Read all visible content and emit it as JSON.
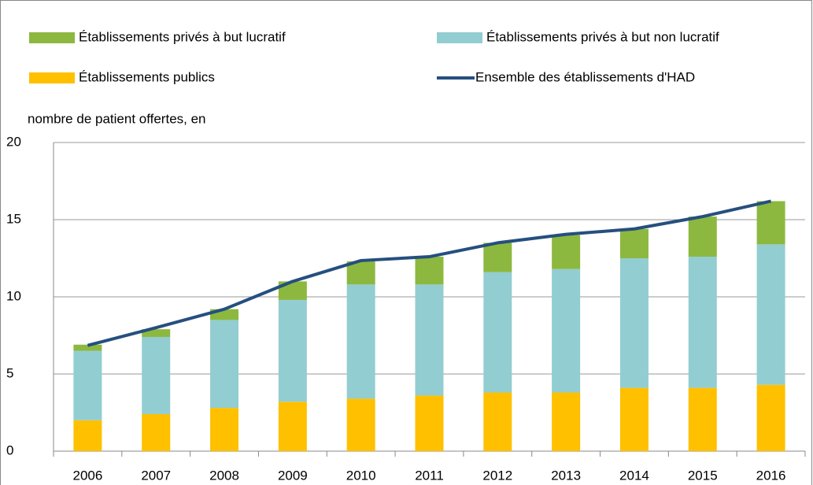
{
  "chart_data": {
    "type": "stacked_bar_line",
    "y_label": "nombre de patient offertes, en",
    "categories": [
      "2006",
      "2007",
      "2008",
      "2009",
      "2010",
      "2011",
      "2012",
      "2013",
      "2014",
      "2015",
      "2016"
    ],
    "series": [
      {
        "name": "Établissements publics",
        "color": "#ffc000",
        "values": [
          2.0,
          2.4,
          2.8,
          3.2,
          3.4,
          3.6,
          3.8,
          3.8,
          4.1,
          4.1,
          4.3
        ]
      },
      {
        "name": "Établissements privés à but non lucratif",
        "color": "#92cdd1",
        "values": [
          4.5,
          5.0,
          5.7,
          6.6,
          7.4,
          7.2,
          7.8,
          8.0,
          8.4,
          8.5,
          9.1
        ]
      },
      {
        "name": "Établissements privés à but lucratif",
        "color": "#8cb83f",
        "values": [
          0.4,
          0.5,
          0.7,
          1.2,
          1.5,
          1.8,
          1.9,
          2.2,
          1.9,
          2.6,
          2.8
        ]
      },
      {
        "name": "Ensemble des établissements d'HAD",
        "color": "#254f7f",
        "type": "line",
        "values": [
          6.85,
          8.0,
          9.2,
          11.0,
          12.35,
          12.6,
          13.5,
          14.05,
          14.4,
          15.2,
          16.2
        ]
      }
    ],
    "ylim": [
      0,
      20
    ],
    "yticks": [
      0,
      5,
      10,
      15,
      20
    ],
    "grid": true
  }
}
